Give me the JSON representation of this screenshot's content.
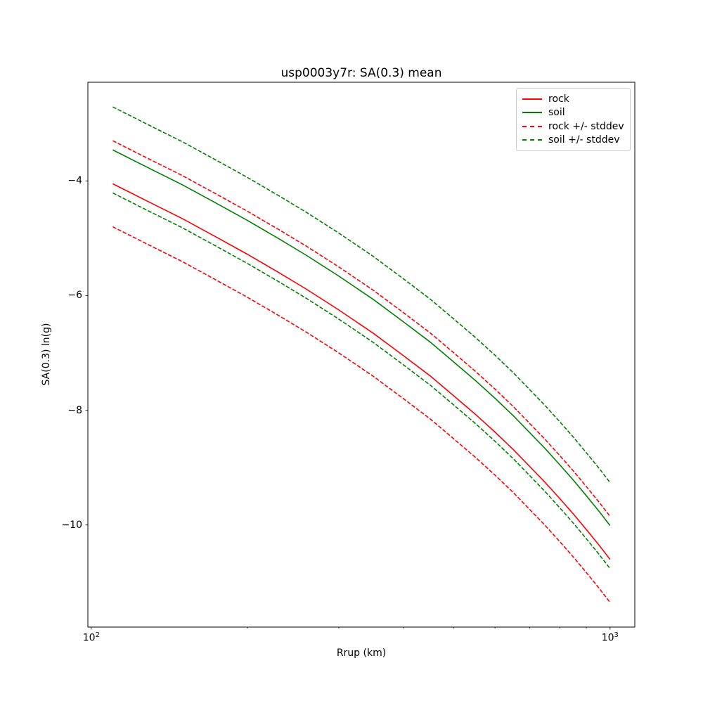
{
  "title": "usp0003y7r: SA(0.3) mean",
  "xlabel": "Rrup (km)",
  "ylabel": "SA(0.3) ln(g)",
  "colors": {
    "rock": "#ff0000",
    "soil": "#008000",
    "axis": "#000000",
    "legend_border": "#cccccc",
    "background": "#ffffff"
  },
  "axes": {
    "x_major_ticks": [
      {
        "value": 100,
        "base": "10",
        "exp": "2"
      },
      {
        "value": 1000,
        "base": "10",
        "exp": "3"
      }
    ],
    "x_minor_ticks": [
      200,
      300,
      400,
      500,
      600,
      700,
      800,
      900
    ],
    "y_major_ticks": [
      {
        "value": -4,
        "label": "−4"
      },
      {
        "value": -6,
        "label": "−6"
      },
      {
        "value": -8,
        "label": "−8"
      },
      {
        "value": -10,
        "label": "−10"
      }
    ]
  },
  "chart_data": {
    "type": "line",
    "title": "usp0003y7r: SA(0.3) mean",
    "xlabel": "Rrup (km)",
    "ylabel": "SA(0.3) ln(g)",
    "xscale": "log",
    "xlim": [
      98.5,
      1116
    ],
    "ylim": [
      -11.78,
      -2.28
    ],
    "grid": false,
    "legend_position": "upper right",
    "x": [
      110,
      130,
      150,
      175,
      200,
      230,
      260,
      300,
      350,
      400,
      450,
      500,
      550,
      600,
      650,
      700,
      750,
      800,
      850,
      900,
      950,
      1000
    ],
    "series": [
      {
        "name": "rock",
        "label": "rock",
        "color": "#ff0000",
        "style": "solid",
        "values": [
          -4.05,
          -4.38,
          -4.66,
          -4.99,
          -5.28,
          -5.6,
          -5.89,
          -6.25,
          -6.66,
          -7.05,
          -7.4,
          -7.75,
          -8.07,
          -8.38,
          -8.68,
          -8.98,
          -9.26,
          -9.54,
          -9.81,
          -10.08,
          -10.34,
          -10.6
        ]
      },
      {
        "name": "soil",
        "label": "soil",
        "color": "#008000",
        "style": "solid",
        "values": [
          -3.46,
          -3.79,
          -4.07,
          -4.4,
          -4.69,
          -5.01,
          -5.3,
          -5.66,
          -6.07,
          -6.46,
          -6.81,
          -7.16,
          -7.48,
          -7.79,
          -8.09,
          -8.39,
          -8.67,
          -8.95,
          -9.22,
          -9.49,
          -9.75,
          -10.01
        ]
      },
      {
        "name": "rock_plus_stddev",
        "label": "rock +/- stddev",
        "color": "#ff0000",
        "style": "dashed",
        "values": [
          -3.3,
          -3.63,
          -3.91,
          -4.24,
          -4.53,
          -4.85,
          -5.14,
          -5.5,
          -5.91,
          -6.3,
          -6.65,
          -7.0,
          -7.32,
          -7.63,
          -7.93,
          -8.23,
          -8.51,
          -8.79,
          -9.06,
          -9.33,
          -9.59,
          -9.85
        ]
      },
      {
        "name": "rock_minus_stddev",
        "label": "rock +/- stddev",
        "color": "#ff0000",
        "style": "dashed",
        "values": [
          -4.8,
          -5.13,
          -5.41,
          -5.74,
          -6.03,
          -6.35,
          -6.64,
          -7.0,
          -7.41,
          -7.8,
          -8.15,
          -8.5,
          -8.82,
          -9.13,
          -9.43,
          -9.73,
          -10.01,
          -10.29,
          -10.56,
          -10.83,
          -11.09,
          -11.35
        ]
      },
      {
        "name": "soil_plus_stddev",
        "label": "soil +/- stddev",
        "color": "#008000",
        "style": "dashed",
        "values": [
          -2.71,
          -3.04,
          -3.32,
          -3.65,
          -3.94,
          -4.26,
          -4.55,
          -4.91,
          -5.32,
          -5.71,
          -6.06,
          -6.41,
          -6.73,
          -7.04,
          -7.34,
          -7.64,
          -7.92,
          -8.2,
          -8.47,
          -8.74,
          -9.0,
          -9.26
        ]
      },
      {
        "name": "soil_minus_stddev",
        "label": "soil +/- stddev",
        "color": "#008000",
        "style": "dashed",
        "values": [
          -4.21,
          -4.54,
          -4.82,
          -5.15,
          -5.44,
          -5.76,
          -6.05,
          -6.41,
          -6.82,
          -7.21,
          -7.56,
          -7.91,
          -8.23,
          -8.54,
          -8.84,
          -9.14,
          -9.42,
          -9.7,
          -9.97,
          -10.24,
          -10.5,
          -10.76
        ]
      }
    ],
    "legend": [
      {
        "label": "rock",
        "color": "#ff0000",
        "style": "solid"
      },
      {
        "label": "soil",
        "color": "#008000",
        "style": "solid"
      },
      {
        "label": "rock +/- stddev",
        "color": "#ff0000",
        "style": "dashed"
      },
      {
        "label": "soil +/- stddev",
        "color": "#008000",
        "style": "dashed"
      }
    ]
  }
}
